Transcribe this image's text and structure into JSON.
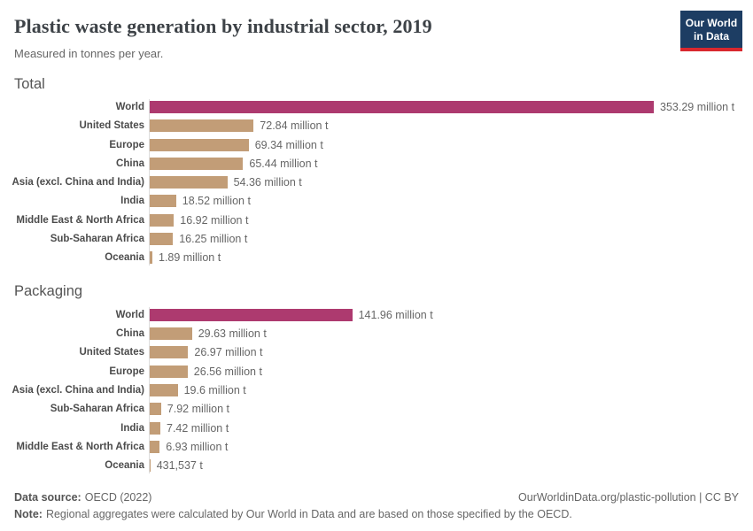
{
  "header": {
    "title": "Plastic waste generation by industrial sector, 2019",
    "subtitle": "Measured in tonnes per year.",
    "logo_line1": "Our World",
    "logo_line2": "in Data"
  },
  "colors": {
    "highlight_bar": "#ad3a6f",
    "default_bar": "#c29d77",
    "logo_background": "#1d3d63",
    "logo_stripe": "#d9282e",
    "axis_line": "#dddddd"
  },
  "chart_data": [
    {
      "type": "bar",
      "orientation": "horizontal",
      "section": "Total",
      "unit": "tonnes per year",
      "xlim": [
        0,
        353.29
      ],
      "highlight_category": "World",
      "categories": [
        "World",
        "United States",
        "Europe",
        "China",
        "Asia (excl. China and India)",
        "India",
        "Middle East & North Africa",
        "Sub-Saharan Africa",
        "Oceania"
      ],
      "values": [
        353.29,
        72.84,
        69.34,
        65.44,
        54.36,
        18.52,
        16.92,
        16.25,
        1.89
      ],
      "value_labels": [
        "353.29 million t",
        "72.84 million t",
        "69.34 million t",
        "65.44 million t",
        "54.36 million t",
        "18.52 million t",
        "16.92 million t",
        "16.25 million t",
        "1.89 million t"
      ]
    },
    {
      "type": "bar",
      "orientation": "horizontal",
      "section": "Packaging",
      "unit": "tonnes per year",
      "xlim": [
        0,
        353.29
      ],
      "highlight_category": "World",
      "categories": [
        "World",
        "China",
        "United States",
        "Europe",
        "Asia (excl. China and India)",
        "Sub-Saharan Africa",
        "India",
        "Middle East & North Africa",
        "Oceania"
      ],
      "values": [
        141.96,
        29.63,
        26.97,
        26.56,
        19.6,
        7.92,
        7.42,
        6.93,
        0.431537
      ],
      "value_labels": [
        "141.96 million t",
        "29.63 million t",
        "26.97 million t",
        "26.56 million t",
        "19.6 million t",
        "7.92 million t",
        "7.42 million t",
        "6.93 million t",
        "431,537 t"
      ]
    }
  ],
  "footer": {
    "source_label": "Data source:",
    "source_value": "OECD (2022)",
    "credit": "OurWorldinData.org/plastic-pollution | CC BY",
    "note_label": "Note:",
    "note_value": "Regional aggregates were calculated by Our World in Data and are based on those specified by the OECD."
  }
}
